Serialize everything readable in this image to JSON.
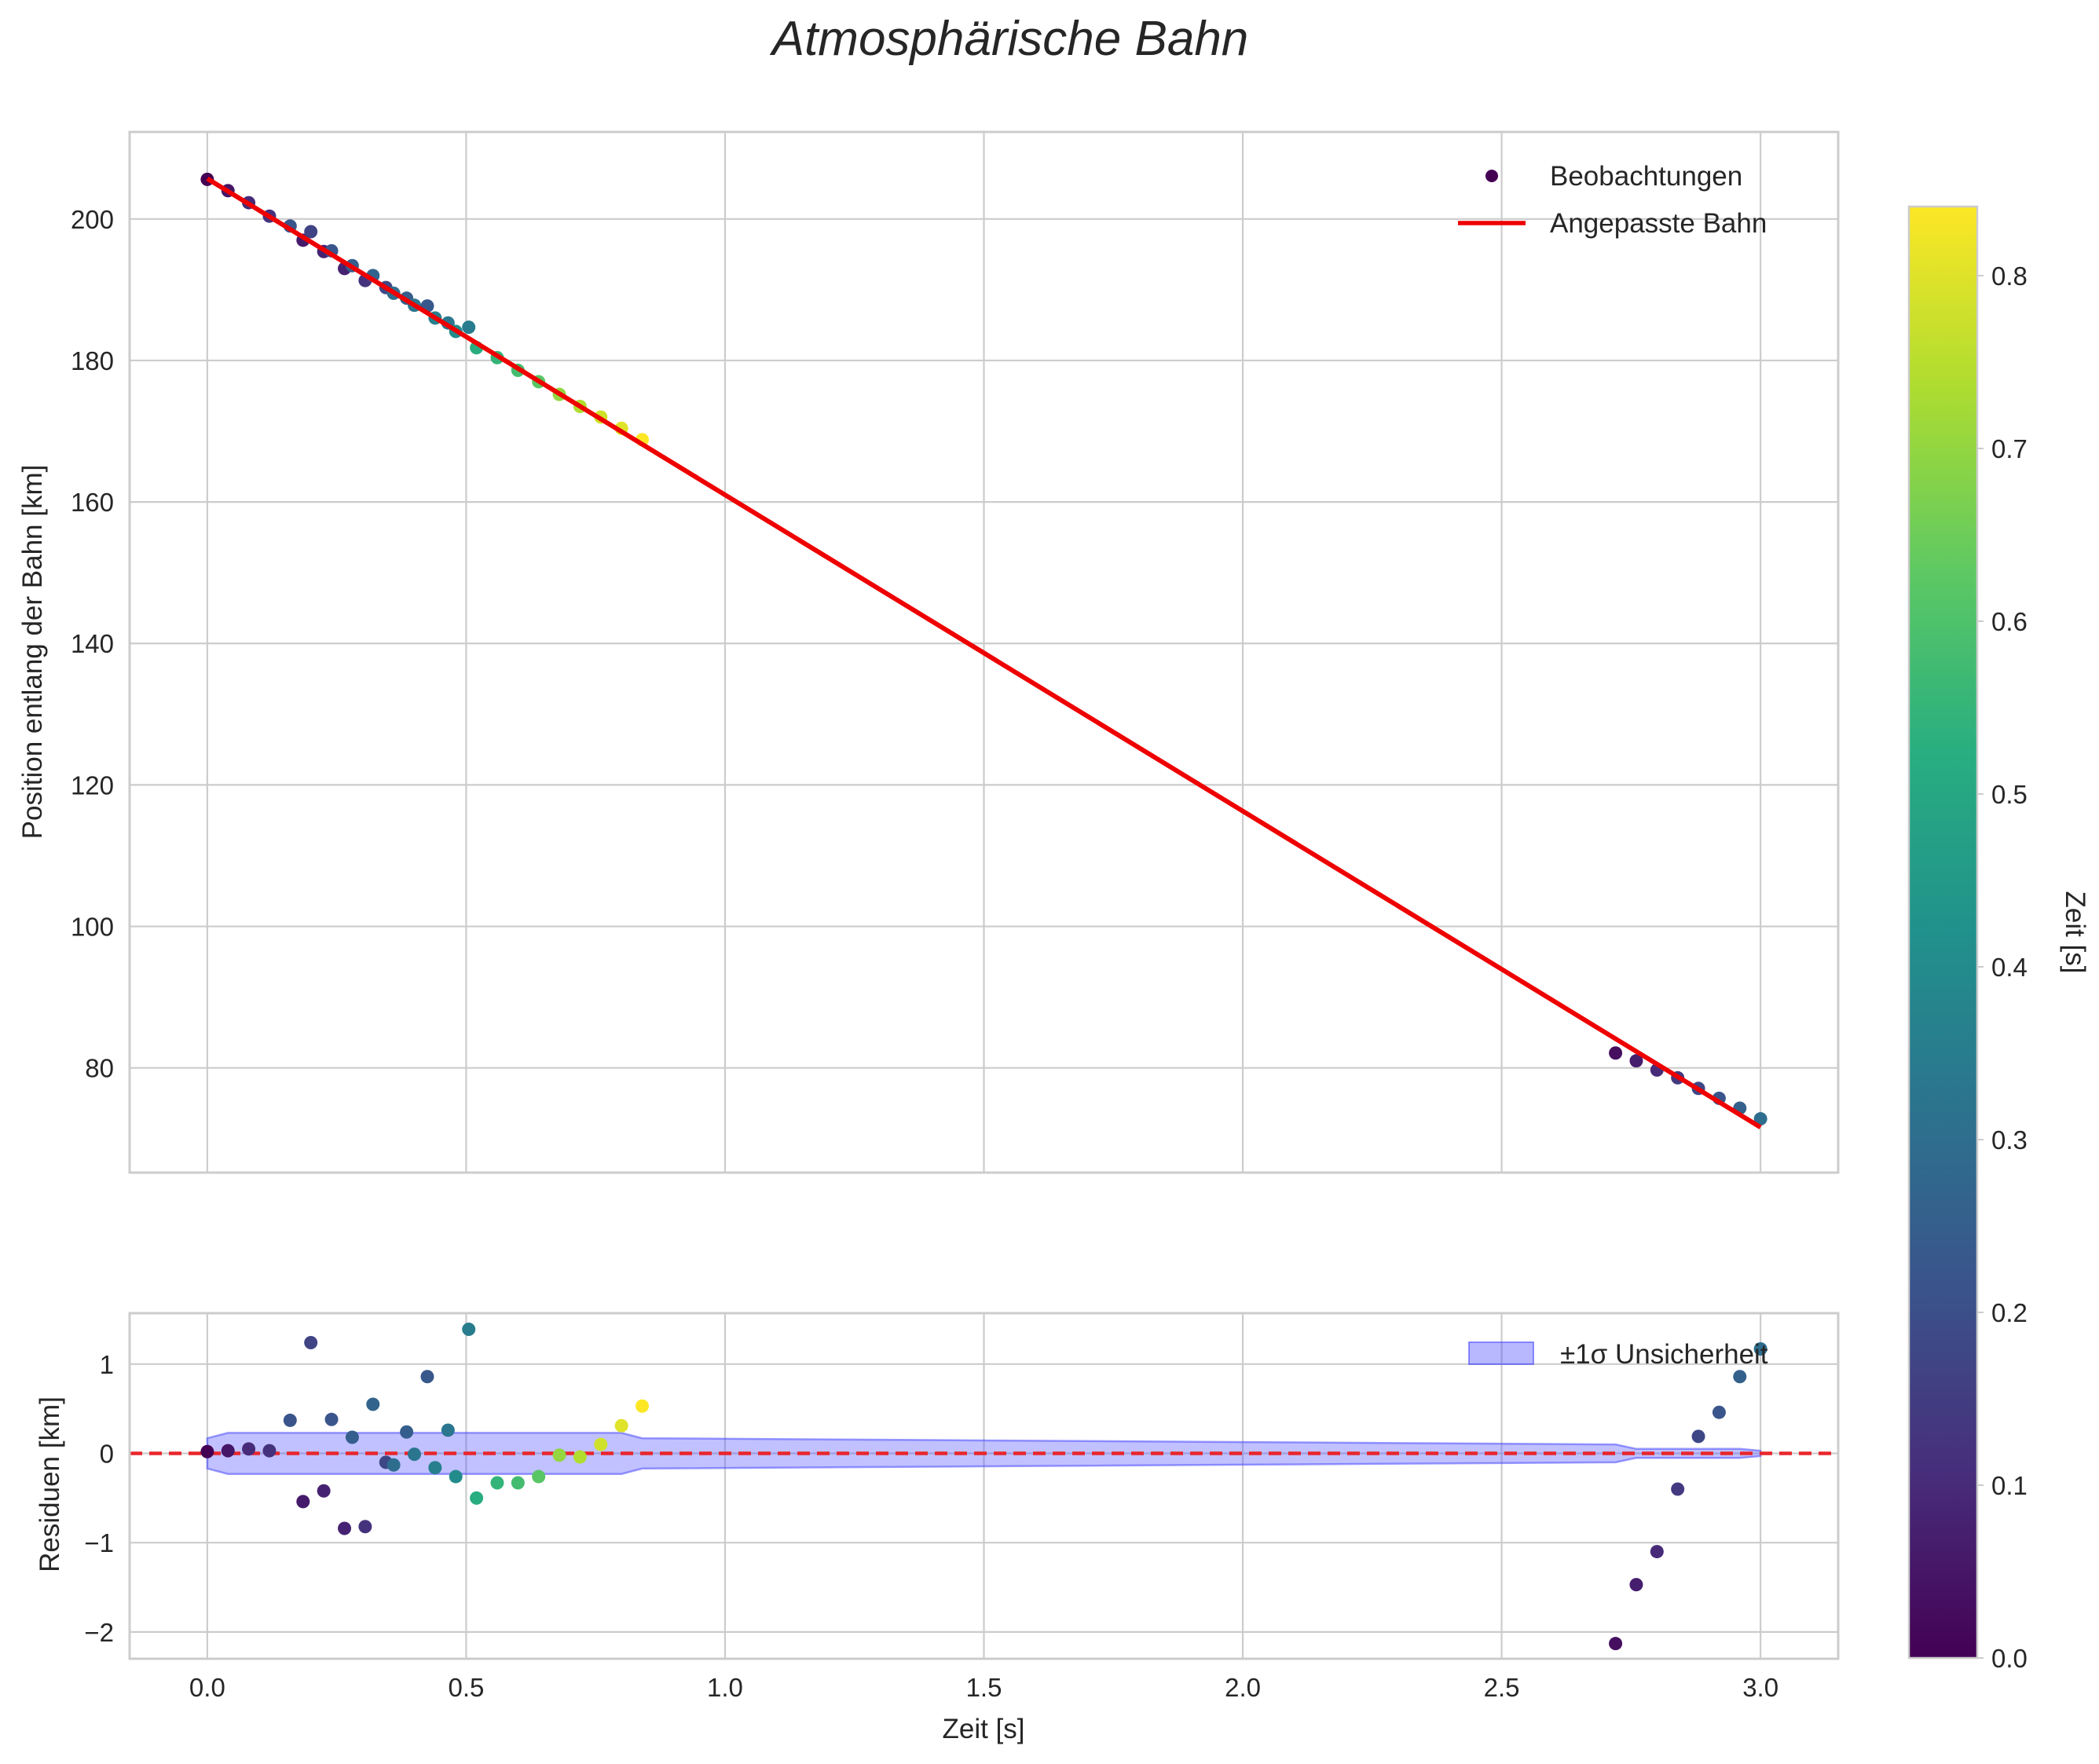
{
  "chart_data": [
    {
      "type": "scatter",
      "panel": "main",
      "title": "Atmosphärische Bahn",
      "xlabel": "",
      "ylabel": "Position entlang der Bahn [km]",
      "xlim": [
        -0.15,
        3.15
      ],
      "ylim": [
        65.2,
        212.3
      ],
      "xticks": [
        0.0,
        0.5,
        1.0,
        1.5,
        2.0,
        2.5,
        3.0
      ],
      "yticks": [
        80,
        100,
        120,
        140,
        160,
        180,
        200
      ],
      "grid": true,
      "legend_position": "top-right",
      "series": [
        {
          "name": "Beobachtungen",
          "kind": "scatter",
          "colormap": "viridis",
          "points": [
            {
              "x": 0.0,
              "y": 205.6,
              "c": 0.0
            },
            {
              "x": 0.04,
              "y": 204.0,
              "c": 0.05
            },
            {
              "x": 0.08,
              "y": 202.3,
              "c": 0.1
            },
            {
              "x": 0.12,
              "y": 200.4,
              "c": 0.12
            },
            {
              "x": 0.16,
              "y": 199.0,
              "c": 0.22
            },
            {
              "x": 0.185,
              "y": 197.0,
              "c": 0.06
            },
            {
              "x": 0.2,
              "y": 198.2,
              "c": 0.17
            },
            {
              "x": 0.225,
              "y": 195.4,
              "c": 0.08
            },
            {
              "x": 0.24,
              "y": 195.5,
              "c": 0.22
            },
            {
              "x": 0.265,
              "y": 193.0,
              "c": 0.08
            },
            {
              "x": 0.28,
              "y": 193.4,
              "c": 0.25
            },
            {
              "x": 0.305,
              "y": 191.3,
              "c": 0.12
            },
            {
              "x": 0.32,
              "y": 192.0,
              "c": 0.27
            },
            {
              "x": 0.345,
              "y": 190.3,
              "c": 0.18
            },
            {
              "x": 0.36,
              "y": 189.5,
              "c": 0.3
            },
            {
              "x": 0.385,
              "y": 188.8,
              "c": 0.25
            },
            {
              "x": 0.4,
              "y": 187.8,
              "c": 0.33
            },
            {
              "x": 0.425,
              "y": 187.7,
              "c": 0.23
            },
            {
              "x": 0.44,
              "y": 186.0,
              "c": 0.36
            },
            {
              "x": 0.465,
              "y": 185.3,
              "c": 0.33
            },
            {
              "x": 0.48,
              "y": 184.1,
              "c": 0.4
            },
            {
              "x": 0.505,
              "y": 184.7,
              "c": 0.35
            },
            {
              "x": 0.52,
              "y": 181.8,
              "c": 0.52
            },
            {
              "x": 0.56,
              "y": 180.4,
              "c": 0.55
            },
            {
              "x": 0.6,
              "y": 178.6,
              "c": 0.58
            },
            {
              "x": 0.64,
              "y": 177.0,
              "c": 0.62
            },
            {
              "x": 0.68,
              "y": 175.2,
              "c": 0.7
            },
            {
              "x": 0.72,
              "y": 173.5,
              "c": 0.74
            },
            {
              "x": 0.76,
              "y": 172.0,
              "c": 0.78
            },
            {
              "x": 0.8,
              "y": 170.4,
              "c": 0.8
            },
            {
              "x": 0.84,
              "y": 168.8,
              "c": 0.84
            },
            {
              "x": 2.72,
              "y": 82.1,
              "c": 0.03
            },
            {
              "x": 2.76,
              "y": 81.0,
              "c": 0.07
            },
            {
              "x": 2.8,
              "y": 79.7,
              "c": 0.1
            },
            {
              "x": 2.84,
              "y": 78.6,
              "c": 0.14
            },
            {
              "x": 2.88,
              "y": 77.1,
              "c": 0.18
            },
            {
              "x": 2.92,
              "y": 75.7,
              "c": 0.22
            },
            {
              "x": 2.96,
              "y": 74.3,
              "c": 0.26
            },
            {
              "x": 3.0,
              "y": 72.8,
              "c": 0.3
            }
          ]
        },
        {
          "name": "Angepasste Bahn",
          "kind": "line",
          "color": "#ee0000",
          "x": [
            0.0,
            3.0
          ],
          "y": [
            205.7,
            71.6
          ]
        }
      ]
    },
    {
      "type": "scatter",
      "panel": "residuals",
      "xlabel": "Zeit [s]",
      "ylabel": "Residuen [km]",
      "xlim": [
        -0.15,
        3.15
      ],
      "ylim": [
        -2.3,
        1.57
      ],
      "xticks": [
        0.0,
        0.5,
        1.0,
        1.5,
        2.0,
        2.5,
        3.0
      ],
      "xtick_labels": [
        "0.0",
        "0.5",
        "1.0",
        "1.5",
        "2.0",
        "2.5",
        "3.0"
      ],
      "yticks": [
        -2,
        -1,
        0,
        1
      ],
      "ytick_labels": [
        "−2",
        "−1",
        "0",
        "1"
      ],
      "zero_line": {
        "y": 0,
        "color": "#e8262b",
        "style": "dashed"
      },
      "grid": true,
      "legend_position": "top-right",
      "series": [
        {
          "name": "±1σ Unsicherheit",
          "kind": "band",
          "color": "#4d4dff",
          "x": [
            0.0,
            0.04,
            0.8,
            0.84,
            2.72,
            2.76,
            2.96,
            3.0
          ],
          "upper": [
            0.17,
            0.23,
            0.23,
            0.17,
            0.1,
            0.05,
            0.05,
            0.03
          ],
          "lower": [
            -0.17,
            -0.23,
            -0.23,
            -0.17,
            -0.1,
            -0.05,
            -0.05,
            -0.03
          ]
        },
        {
          "name": "Residuen",
          "kind": "scatter",
          "colormap": "viridis",
          "points": [
            {
              "x": 0.0,
              "y": 0.02,
              "c": 0.0
            },
            {
              "x": 0.04,
              "y": 0.03,
              "c": 0.05
            },
            {
              "x": 0.08,
              "y": 0.05,
              "c": 0.1
            },
            {
              "x": 0.12,
              "y": 0.03,
              "c": 0.12
            },
            {
              "x": 0.16,
              "y": 0.37,
              "c": 0.22
            },
            {
              "x": 0.185,
              "y": -0.54,
              "c": 0.06
            },
            {
              "x": 0.2,
              "y": 1.24,
              "c": 0.17
            },
            {
              "x": 0.225,
              "y": -0.42,
              "c": 0.08
            },
            {
              "x": 0.24,
              "y": 0.38,
              "c": 0.22
            },
            {
              "x": 0.265,
              "y": -0.84,
              "c": 0.08
            },
            {
              "x": 0.28,
              "y": 0.18,
              "c": 0.25
            },
            {
              "x": 0.305,
              "y": -0.82,
              "c": 0.12
            },
            {
              "x": 0.32,
              "y": 0.55,
              "c": 0.27
            },
            {
              "x": 0.345,
              "y": -0.1,
              "c": 0.18
            },
            {
              "x": 0.36,
              "y": -0.13,
              "c": 0.3
            },
            {
              "x": 0.385,
              "y": 0.24,
              "c": 0.25
            },
            {
              "x": 0.4,
              "y": -0.01,
              "c": 0.33
            },
            {
              "x": 0.425,
              "y": 0.86,
              "c": 0.23
            },
            {
              "x": 0.44,
              "y": -0.16,
              "c": 0.36
            },
            {
              "x": 0.465,
              "y": 0.26,
              "c": 0.33
            },
            {
              "x": 0.48,
              "y": -0.26,
              "c": 0.4
            },
            {
              "x": 0.505,
              "y": 1.39,
              "c": 0.35
            },
            {
              "x": 0.52,
              "y": -0.5,
              "c": 0.52
            },
            {
              "x": 0.56,
              "y": -0.33,
              "c": 0.55
            },
            {
              "x": 0.6,
              "y": -0.33,
              "c": 0.58
            },
            {
              "x": 0.64,
              "y": -0.26,
              "c": 0.62
            },
            {
              "x": 0.68,
              "y": -0.02,
              "c": 0.7
            },
            {
              "x": 0.72,
              "y": -0.04,
              "c": 0.74
            },
            {
              "x": 0.76,
              "y": 0.1,
              "c": 0.78
            },
            {
              "x": 0.8,
              "y": 0.31,
              "c": 0.8
            },
            {
              "x": 0.84,
              "y": 0.53,
              "c": 0.84
            },
            {
              "x": 2.72,
              "y": -2.13,
              "c": 0.03
            },
            {
              "x": 2.76,
              "y": -1.47,
              "c": 0.07
            },
            {
              "x": 2.8,
              "y": -1.1,
              "c": 0.1
            },
            {
              "x": 2.84,
              "y": -0.4,
              "c": 0.14
            },
            {
              "x": 2.88,
              "y": 0.19,
              "c": 0.18
            },
            {
              "x": 2.92,
              "y": 0.46,
              "c": 0.22
            },
            {
              "x": 2.96,
              "y": 0.86,
              "c": 0.26
            },
            {
              "x": 3.0,
              "y": 1.17,
              "c": 0.3
            }
          ]
        }
      ]
    },
    {
      "type": "colorbar",
      "label": "Zeit [s]",
      "colormap": "viridis",
      "range": [
        0.0,
        0.84
      ],
      "ticks": [
        0.0,
        0.1,
        0.2,
        0.3,
        0.4,
        0.5,
        0.6,
        0.7,
        0.8
      ],
      "tick_labels": [
        "0.0",
        "0.1",
        "0.2",
        "0.3",
        "0.4",
        "0.5",
        "0.6",
        "0.7",
        "0.8"
      ]
    }
  ]
}
